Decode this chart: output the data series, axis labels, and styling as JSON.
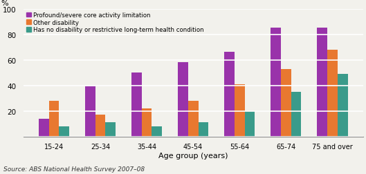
{
  "categories": [
    "15-24",
    "25-34",
    "35-44",
    "45-54",
    "55-64",
    "65-74",
    "75 and over"
  ],
  "series": {
    "Profound/severe core activity limitation": [
      14,
      39,
      50,
      58,
      66,
      85,
      85
    ],
    "Other disability": [
      28,
      17,
      22,
      28,
      41,
      53,
      68
    ],
    "Has no disability or restrictive long-term health condition": [
      8,
      11,
      8,
      11,
      20,
      35,
      49
    ]
  },
  "colors": {
    "Profound/severe core activity limitation": "#9933AA",
    "Other disability": "#E87830",
    "Has no disability or restrictive long-term health condition": "#3A9B8A"
  },
  "ylabel": "%",
  "xlabel": "Age group (years)",
  "ylim": [
    0,
    100
  ],
  "yticks": [
    0,
    20,
    40,
    60,
    80,
    100
  ],
  "source": "Source: ABS National Health Survey 2007–08",
  "bar_width": 0.22,
  "legend_labels": [
    "Profound/severe core activity limitation",
    "Other disability",
    "Has no disability or restrictive long-term health condition"
  ],
  "grid_color": "#FFFFFF",
  "background_color": "#F2F1EC"
}
